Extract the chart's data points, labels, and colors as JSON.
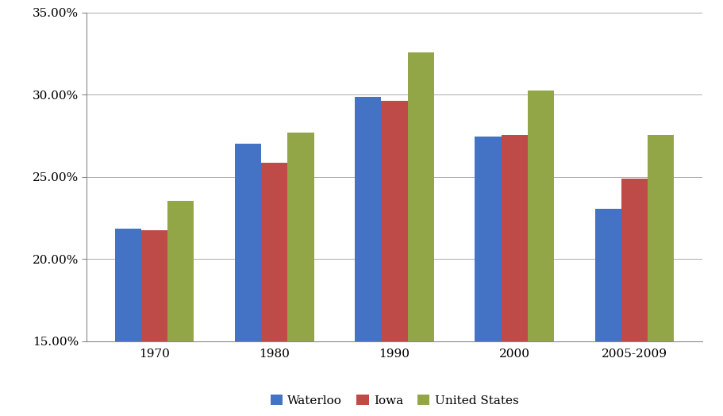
{
  "categories": [
    "1970",
    "1980",
    "1990",
    "2000",
    "2005-2009"
  ],
  "series": {
    "Waterloo": [
      0.2185,
      0.27,
      0.2985,
      0.2745,
      0.2305
    ],
    "Iowa": [
      0.2175,
      0.2585,
      0.296,
      0.2755,
      0.249
    ],
    "United States": [
      0.2355,
      0.277,
      0.3255,
      0.3025,
      0.2755
    ]
  },
  "colors": {
    "Waterloo": "#4472C4",
    "Iowa": "#BE4B48",
    "United States": "#92A648"
  },
  "ylim": [
    0.15,
    0.35
  ],
  "yticks": [
    0.15,
    0.2,
    0.25,
    0.3,
    0.35
  ],
  "background_color": "#FFFFFF",
  "grid_color": "#AAAAAA",
  "bar_width": 0.22,
  "legend_labels": [
    "Waterloo",
    "Iowa",
    "United States"
  ],
  "font_family": "serif"
}
